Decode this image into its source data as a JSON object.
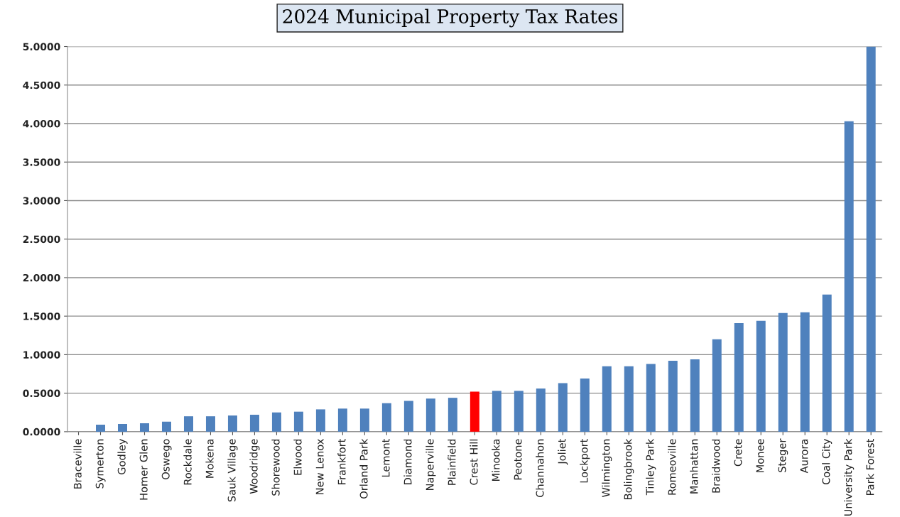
{
  "chart_data": {
    "type": "bar",
    "title": "2024 Municipal Property Tax Rates",
    "categories": [
      "Braceville",
      "Symerton",
      "Godley",
      "Homer Glen",
      "Oswego",
      "Rockdale",
      "Mokena",
      "Sauk Village",
      "Woodridge",
      "Shorewood",
      "Elwood",
      "New Lenox",
      "Frankfort",
      "Orland Park",
      "Lemont",
      "Diamond",
      "Naperville",
      "Plainfield",
      "Crest Hill",
      "Minooka",
      "Peotone",
      "Channahon",
      "Joliet",
      "Lockport",
      "Wilmington",
      "Bolingbrook",
      "Tinley Park",
      "Romeoville",
      "Manhattan",
      "Braidwood",
      "Crete",
      "Monee",
      "Steger",
      "Aurora",
      "Coal City",
      "University Park",
      "Park Forest"
    ],
    "values": [
      0,
      0.09,
      0.1,
      0.11,
      0.13,
      0.2,
      0.2,
      0.21,
      0.22,
      0.25,
      0.26,
      0.29,
      0.3,
      0.3,
      0.37,
      0.4,
      0.43,
      0.44,
      0.52,
      0.53,
      0.53,
      0.56,
      0.63,
      0.69,
      0.85,
      0.85,
      0.88,
      0.92,
      0.94,
      1.2,
      1.41,
      1.44,
      1.54,
      1.55,
      1.78,
      4.03,
      5.0
    ],
    "colors": [
      "#4f81bd",
      "#4f81bd",
      "#4f81bd",
      "#4f81bd",
      "#4f81bd",
      "#4f81bd",
      "#4f81bd",
      "#4f81bd",
      "#4f81bd",
      "#4f81bd",
      "#4f81bd",
      "#4f81bd",
      "#4f81bd",
      "#4f81bd",
      "#4f81bd",
      "#4f81bd",
      "#4f81bd",
      "#4f81bd",
      "#ff0000",
      "#4f81bd",
      "#4f81bd",
      "#4f81bd",
      "#4f81bd",
      "#4f81bd",
      "#4f81bd",
      "#4f81bd",
      "#4f81bd",
      "#4f81bd",
      "#4f81bd",
      "#4f81bd",
      "#4f81bd",
      "#4f81bd",
      "#4f81bd",
      "#4f81bd",
      "#4f81bd",
      "#4f81bd",
      "#4f81bd"
    ],
    "ylim": [
      0,
      5
    ],
    "yticks": [
      {
        "value": 0,
        "label": "0.0000"
      },
      {
        "value": 0.5,
        "label": "0.5000"
      },
      {
        "value": 1,
        "label": "1.0000"
      },
      {
        "value": 1.5,
        "label": "1.5000"
      },
      {
        "value": 2,
        "label": "2.0000"
      },
      {
        "value": 2.5,
        "label": "2.5000"
      },
      {
        "value": 3,
        "label": "3.0000"
      },
      {
        "value": 3.5,
        "label": "3.5000"
      },
      {
        "value": 4,
        "label": "4.0000"
      },
      {
        "value": 4.5,
        "label": "4.5000"
      },
      {
        "value": 5,
        "label": "5.0000"
      }
    ],
    "grid": "y",
    "legend": false
  }
}
